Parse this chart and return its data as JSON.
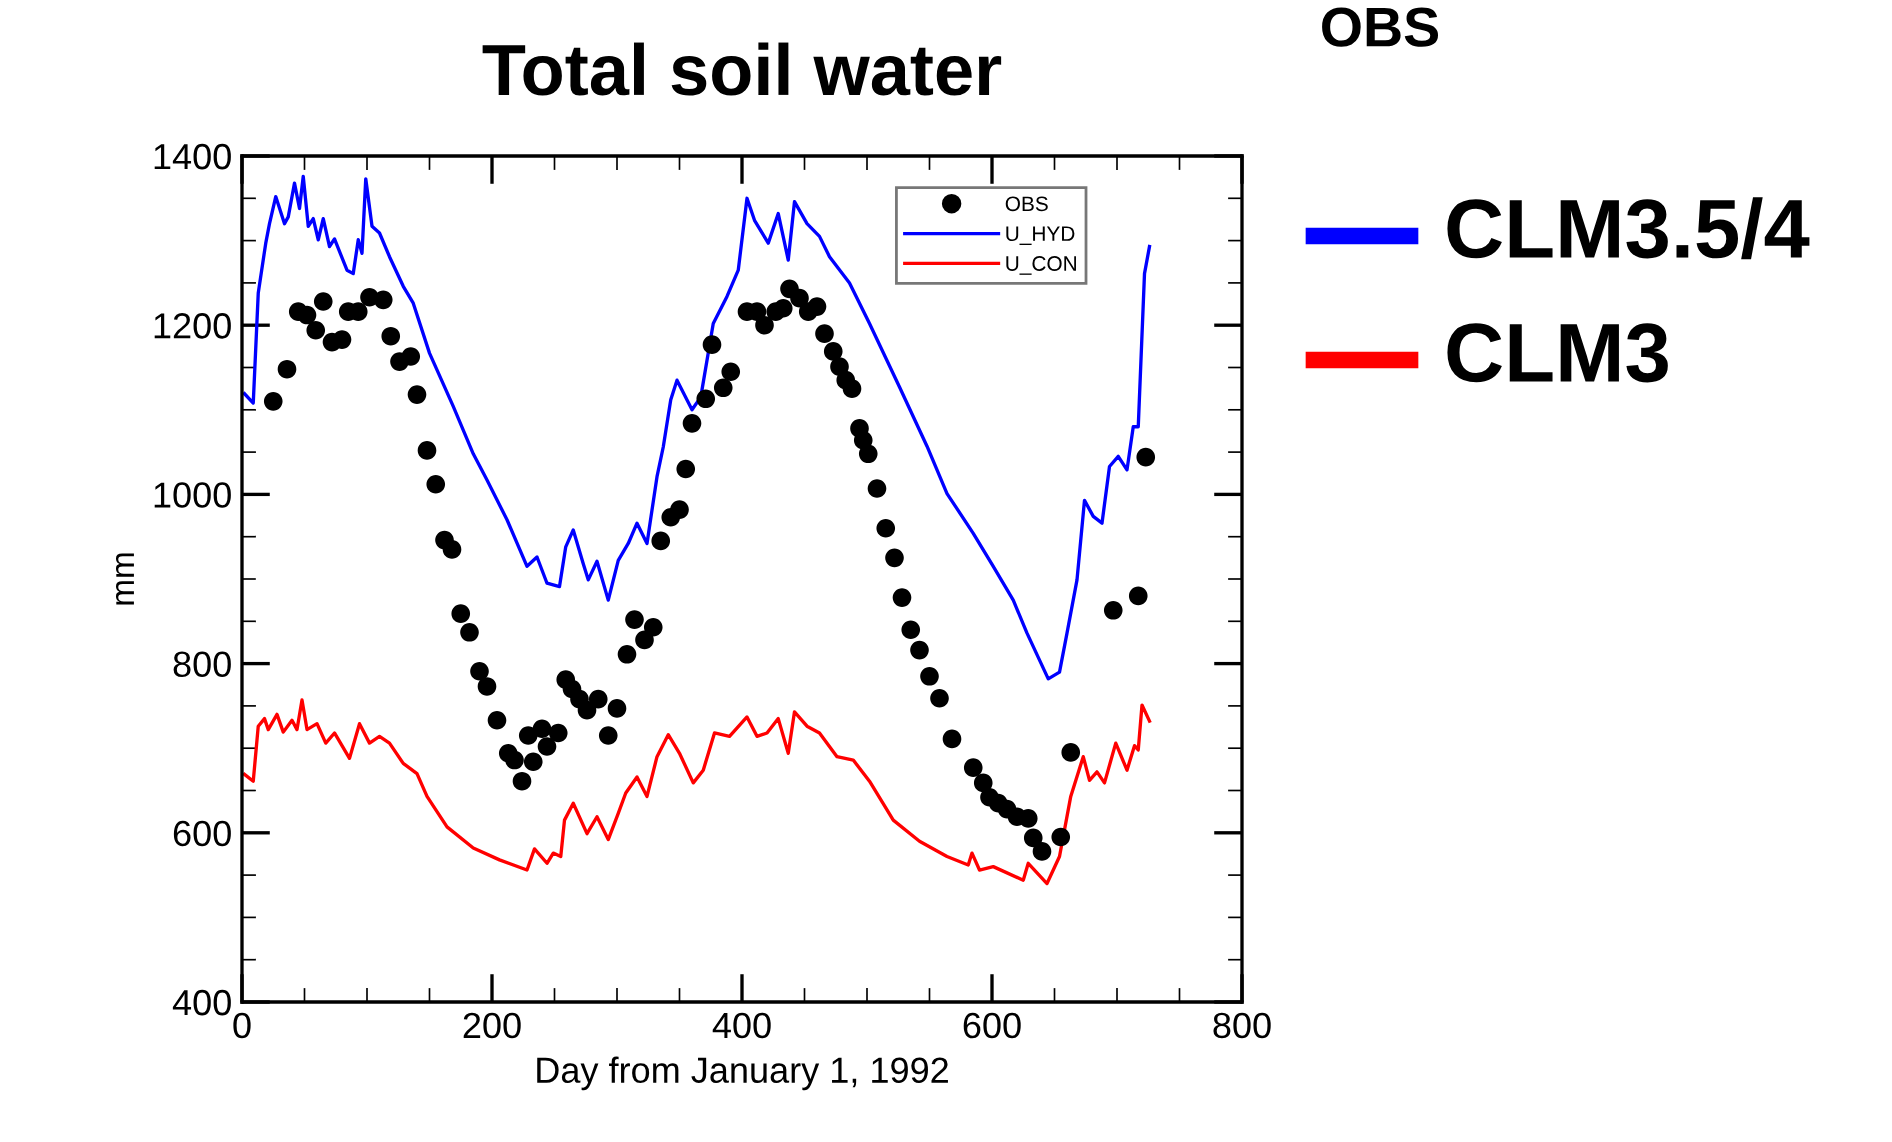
{
  "chart_data": {
    "type": "line",
    "title": "Total soil water",
    "xlabel": "Day from January 1, 1992",
    "ylabel": "mm",
    "xlim": [
      0,
      800
    ],
    "ylim": [
      400,
      1400
    ],
    "xticks": [
      0,
      {
        "value": 50,
        "label": null
      },
      {
        "value": 100,
        "label": null
      },
      {
        "value": 150,
        "label": null
      },
      200,
      {
        "value": 250,
        "label": null
      },
      {
        "value": 300,
        "label": null
      },
      {
        "value": 350,
        "label": null
      },
      400,
      {
        "value": 450,
        "label": null
      },
      {
        "value": 500,
        "label": null
      },
      {
        "value": 550,
        "label": null
      },
      600,
      {
        "value": 650,
        "label": null
      },
      {
        "value": 700,
        "label": null
      },
      {
        "value": 750,
        "label": null
      },
      800
    ],
    "yticks": [
      400,
      {
        "value": 450,
        "label": null
      },
      {
        "value": 500,
        "label": null
      },
      {
        "value": 550,
        "label": null
      },
      600,
      {
        "value": 650,
        "label": null
      },
      {
        "value": 700,
        "label": null
      },
      {
        "value": 750,
        "label": null
      },
      800,
      {
        "value": 850,
        "label": null
      },
      {
        "value": 900,
        "label": null
      },
      {
        "value": 950,
        "label": null
      },
      1000,
      {
        "value": 1050,
        "label": null
      },
      {
        "value": 1100,
        "label": null
      },
      {
        "value": 1150,
        "label": null
      },
      1200,
      {
        "value": 1250,
        "label": null
      },
      {
        "value": 1300,
        "label": null
      },
      {
        "value": 1350,
        "label": null
      },
      1400
    ],
    "legend": "top right",
    "grid": false,
    "annotations": [
      "OBS",
      "CLM3.5/4",
      "CLM3"
    ],
    "series": [
      {
        "name": "OBS",
        "type": "scatter",
        "marker": "circle",
        "color": "#000000",
        "x": [
          25,
          36,
          45,
          52,
          59,
          65,
          72,
          80,
          85,
          93,
          102,
          113,
          119,
          126,
          135,
          140,
          148,
          155,
          162,
          168,
          175,
          182,
          190,
          196,
          204,
          213,
          218,
          224,
          229,
          233,
          240,
          244,
          253,
          259,
          264,
          270,
          276,
          285,
          293,
          300,
          308,
          314,
          322,
          329,
          335,
          343,
          350,
          355,
          360,
          371,
          376,
          385,
          391,
          404,
          412,
          418,
          427,
          433,
          438,
          446,
          453,
          460,
          466,
          473,
          478,
          483,
          488,
          494,
          497,
          501,
          508,
          515,
          522,
          528,
          535,
          542,
          550,
          558,
          568,
          585,
          593,
          598,
          605,
          612,
          620,
          629,
          633,
          640,
          655,
          663,
          697,
          717,
          723
        ],
        "values": [
          1110,
          1148,
          1216,
          1212,
          1194,
          1228,
          1180,
          1183,
          1216,
          1216,
          1233,
          1230,
          1187,
          1157,
          1163,
          1118,
          1052,
          1012,
          946,
          935,
          859,
          837,
          791,
          773,
          733,
          694,
          686,
          661,
          715,
          684,
          723,
          702,
          718,
          781,
          770,
          758,
          745,
          758,
          715,
          747,
          811,
          852,
          828,
          843,
          945,
          973,
          982,
          1030,
          1084,
          1113,
          1177,
          1126,
          1145,
          1216,
          1216,
          1200,
          1216,
          1220,
          1243,
          1232,
          1216,
          1222,
          1190,
          1169,
          1151,
          1135,
          1125,
          1078,
          1064,
          1048,
          1007,
          960,
          925,
          878,
          840,
          816,
          785,
          759,
          711,
          677,
          659,
          642,
          635,
          628,
          619,
          617,
          594,
          578,
          595,
          695,
          863,
          880,
          1044
        ]
      },
      {
        "name": "U_HYD",
        "marker": "none",
        "line_style": "solid",
        "color": "#0000ff",
        "x": [
          2,
          9,
          13,
          19,
          22,
          27,
          34,
          37,
          42,
          46,
          49,
          53,
          57,
          61,
          65,
          70,
          74,
          84,
          89,
          93,
          96,
          99,
          104,
          110,
          118,
          129,
          137,
          150,
          169,
          185,
          196,
          212,
          228,
          236,
          244,
          254,
          259,
          265,
          273,
          277,
          284,
          293,
          301,
          309,
          316,
          324,
          332,
          337,
          343,
          348,
          360,
          367,
          377,
          388,
          397,
          404,
          410,
          421,
          429,
          437,
          442,
          452,
          462,
          470,
          486,
          502,
          526,
          548,
          564,
          585,
          601,
          617,
          628,
          645,
          654,
          660,
          668,
          674,
          681,
          688,
          694,
          701,
          708,
          713,
          717,
          722,
          726
        ],
        "values": [
          1119,
          1108,
          1238,
          1297,
          1320,
          1352,
          1320,
          1328,
          1368,
          1338,
          1376,
          1317,
          1326,
          1301,
          1326,
          1293,
          1302,
          1265,
          1261,
          1301,
          1285,
          1373,
          1317,
          1309,
          1281,
          1246,
          1226,
          1167,
          1104,
          1048,
          1017,
          970,
          915,
          926,
          895,
          891,
          938,
          958,
          918,
          899,
          921,
          875,
          922,
          942,
          966,
          942,
          1021,
          1056,
          1112,
          1135,
          1100,
          1115,
          1202,
          1234,
          1265,
          1350,
          1324,
          1297,
          1332,
          1277,
          1346,
          1320,
          1305,
          1281,
          1250,
          1202,
          1127,
          1057,
          1001,
          954,
          915,
          875,
          836,
          782,
          790,
          836,
          899,
          993,
          974,
          966,
          1033,
          1045,
          1029,
          1080,
          1080,
          1261,
          1293
        ]
      },
      {
        "name": "U_CON",
        "marker": "none",
        "line_style": "solid",
        "color": "#ff0000",
        "x": [
          2,
          9,
          13,
          18,
          21,
          28,
          33,
          40,
          44,
          48,
          52,
          60,
          67,
          74,
          86,
          94,
          102,
          110,
          118,
          129,
          140,
          148,
          164,
          185,
          206,
          228,
          234,
          244,
          249,
          255,
          258,
          265,
          276,
          284,
          293,
          301,
          307,
          316,
          324,
          332,
          341,
          350,
          361,
          369,
          378,
          390,
          404,
          412,
          420,
          429,
          437,
          442,
          452,
          462,
          476,
          489,
          502,
          521,
          542,
          564,
          581,
          584,
          590,
          601,
          625,
          629,
          644,
          654,
          663,
          673,
          678,
          684,
          690,
          699,
          708,
          714,
          717,
          720,
          726
        ],
        "values": [
          669,
          661,
          726,
          735,
          722,
          740,
          719,
          733,
          722,
          757,
          722,
          729,
          706,
          718,
          688,
          729,
          706,
          714,
          706,
          682,
          670,
          643,
          607,
          582,
          568,
          556,
          581,
          564,
          576,
          572,
          615,
          635,
          599,
          619,
          592,
          623,
          647,
          666,
          643,
          690,
          716,
          694,
          659,
          674,
          718,
          714,
          737,
          714,
          718,
          735,
          694,
          743,
          726,
          718,
          690,
          686,
          661,
          615,
          590,
          572,
          562,
          576,
          556,
          560,
          544,
          564,
          540,
          572,
          643,
          690,
          662,
          672,
          659,
          706,
          674,
          703,
          698,
          751,
          732
        ]
      }
    ]
  }
}
